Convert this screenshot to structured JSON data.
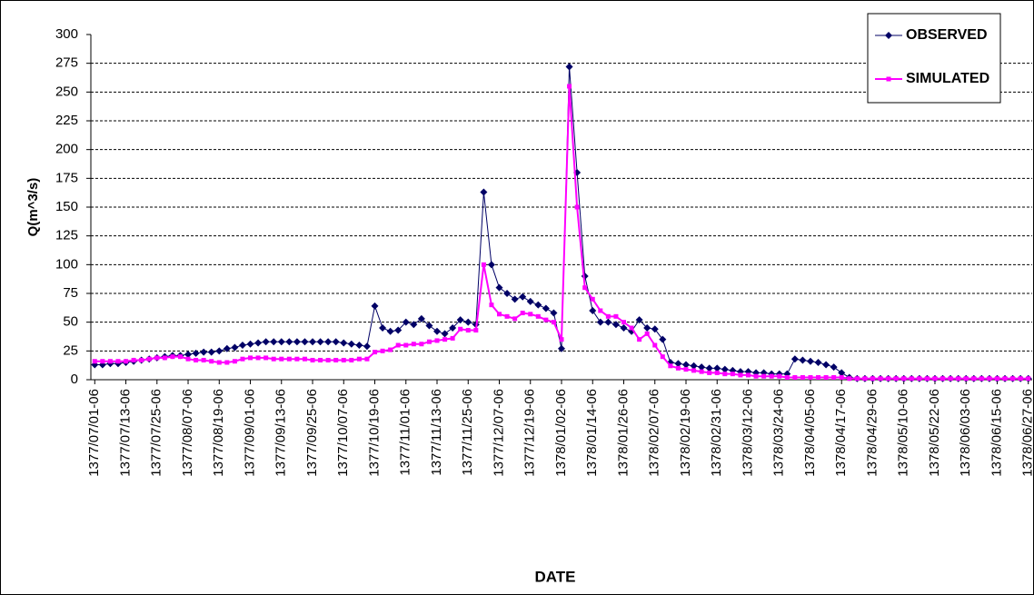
{
  "chart_data": {
    "type": "line",
    "y_label": "Q(m^3/s)",
    "x_label": "DATE",
    "categories": [
      "1377/07/01-06",
      null,
      null,
      null,
      "1377/07/13-06",
      null,
      null,
      null,
      "1377/07/25-06",
      null,
      null,
      null,
      "1377/08/07-06",
      null,
      null,
      null,
      "1377/08/19-06",
      null,
      null,
      null,
      "1377/09/01-06",
      null,
      null,
      null,
      "1377/09/13-06",
      null,
      null,
      null,
      "1377/09/25-06",
      null,
      null,
      null,
      "1377/10/07-06",
      null,
      null,
      null,
      "1377/10/19-06",
      null,
      null,
      null,
      "1377/11/01-06",
      null,
      null,
      null,
      "1377/11/13-06",
      null,
      null,
      null,
      "1377/11/25-06",
      null,
      null,
      null,
      "1377/12/07-06",
      null,
      null,
      null,
      "1377/12/19-06",
      null,
      null,
      null,
      "1378/01/02-06",
      null,
      null,
      null,
      "1378/01/14-06",
      null,
      null,
      null,
      "1378/01/26-06",
      null,
      null,
      null,
      "1378/02/07-06",
      null,
      null,
      null,
      "1378/02/19-06",
      null,
      null,
      null,
      "1378/02/31-06",
      null,
      null,
      null,
      "1378/03/12-06",
      null,
      null,
      null,
      "1378/03/24-06",
      null,
      null,
      null,
      "1378/04/05-06",
      null,
      null,
      null,
      "1378/04/17-06",
      null,
      null,
      null,
      "1378/04/29-06",
      null,
      null,
      null,
      "1378/05/10-06",
      null,
      null,
      null,
      "1378/05/22-06",
      null,
      null,
      null,
      "1378/06/03-06",
      null,
      null,
      null,
      "1378/06/15-06",
      null,
      null,
      null,
      "1378/06/27-06"
    ],
    "series": [
      {
        "name": "OBSERVED",
        "color": "#000066",
        "marker": "diamond",
        "values": [
          13,
          13,
          14,
          14,
          15,
          16,
          17,
          18,
          19,
          20,
          21,
          21,
          22,
          23,
          24,
          24,
          25,
          27,
          28,
          30,
          31,
          32,
          33,
          33,
          33,
          33,
          33,
          33,
          33,
          33,
          33,
          33,
          32,
          31,
          30,
          29,
          64,
          45,
          42,
          43,
          50,
          48,
          53,
          47,
          42,
          40,
          45,
          52,
          50,
          48,
          163,
          100,
          80,
          75,
          70,
          72,
          68,
          65,
          62,
          58,
          27,
          272,
          180,
          90,
          60,
          50,
          50,
          48,
          45,
          42,
          52,
          45,
          44,
          35,
          15,
          14,
          13,
          12,
          11,
          10,
          10,
          9,
          8,
          7,
          7,
          6,
          6,
          5,
          5,
          5,
          18,
          17,
          16,
          15,
          13,
          11,
          6,
          2,
          1,
          1,
          1,
          1,
          1,
          1,
          1,
          1,
          1,
          1,
          1,
          1,
          1,
          1,
          1,
          1,
          1,
          1,
          1,
          1,
          1,
          1,
          1
        ]
      },
      {
        "name": "SIMULATED",
        "color": "#ff00ff",
        "marker": "square",
        "values": [
          16,
          16,
          16,
          16,
          16,
          17,
          17,
          18,
          19,
          19,
          20,
          20,
          18,
          17,
          17,
          16,
          15,
          15,
          16,
          18,
          19,
          19,
          19,
          18,
          18,
          18,
          18,
          18,
          17,
          17,
          17,
          17,
          17,
          17,
          18,
          18,
          24,
          25,
          26,
          30,
          30,
          31,
          31,
          33,
          34,
          35,
          36,
          44,
          43,
          43,
          100,
          65,
          57,
          55,
          53,
          58,
          57,
          55,
          52,
          50,
          35,
          255,
          150,
          80,
          70,
          60,
          55,
          55,
          50,
          45,
          35,
          40,
          30,
          20,
          12,
          10,
          9,
          8,
          7,
          6,
          6,
          5,
          5,
          4,
          4,
          3,
          3,
          3,
          3,
          2,
          2,
          2,
          2,
          2,
          2,
          2,
          2,
          1,
          1,
          1,
          1,
          1,
          1,
          1,
          1,
          1,
          1,
          1,
          1,
          1,
          1,
          1,
          1,
          1,
          1,
          1,
          1,
          1,
          1,
          1,
          1
        ]
      }
    ],
    "ylim": [
      0,
      300
    ],
    "yticks": [
      0,
      25,
      50,
      75,
      100,
      125,
      150,
      175,
      200,
      225,
      250,
      275,
      300
    ],
    "grid": true,
    "legend": "upper right"
  }
}
